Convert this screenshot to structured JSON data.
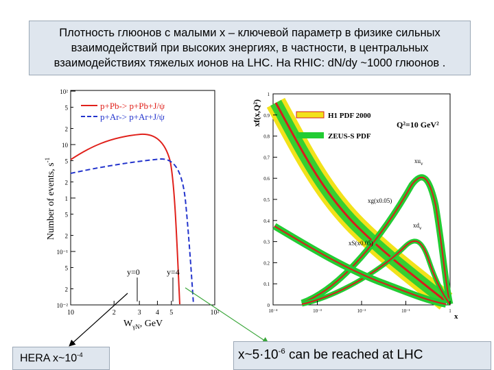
{
  "title": {
    "lines": [
      "Плотность глюонов с малыми x – ключевой параметр в физике сильных",
      "взаимодействий  при высоких энергиях, в частности, в центральных",
      "взаимодействиях тяжелых ионов на LHC. На RHIC: dN/dy ~1000 глюонов ."
    ]
  },
  "left_plot": {
    "legend": [
      "p+Pb-> p+Pb+J/ψ",
      "p+Ar-> p+Ar+J/ψ"
    ],
    "y_label": "Number of events, s",
    "y_label_sup": "-1",
    "x_label": "W",
    "x_label_sub": "γN",
    "x_label_unit": ", GeV",
    "annotations": [
      "y=0",
      "y=4"
    ],
    "yticks": [
      "10²",
      "5",
      "2",
      "10",
      "5",
      "2",
      "1",
      "5",
      "2",
      "10⁻¹",
      "5",
      "2",
      "10⁻²"
    ],
    "xticks": [
      "10",
      "2",
      "3",
      "4",
      "5",
      "10²"
    ]
  },
  "right_plot": {
    "y_label": "xf(x,Q²)",
    "x_label": "x",
    "legend": [
      "H1 PDF 2000",
      "ZEUS-S PDF"
    ],
    "scale_label": "Q²=10 GeV²",
    "curve_labels": [
      "xu",
      "xg(x0.05)",
      "xd",
      "xS(x0.05)"
    ],
    "curve_label_subs": [
      "v",
      "",
      "v",
      ""
    ],
    "yticks": [
      "1",
      "0.9",
      "0.8",
      "0.7",
      "0.6",
      "0.5",
      "0.4",
      "0.3",
      "0.2",
      "0.1",
      "0"
    ],
    "xticks": [
      "10⁻⁴",
      "10⁻³",
      "10⁻²",
      "10⁻¹",
      "1"
    ]
  },
  "notes": {
    "left": {
      "text": "HERA x~10",
      "sup": "-4"
    },
    "right": {
      "before": "x~5·10",
      "sup": "-6",
      "after": " can be reached at LHC"
    }
  }
}
